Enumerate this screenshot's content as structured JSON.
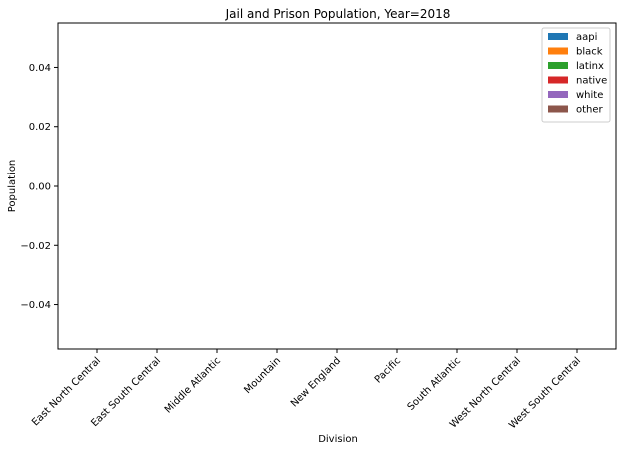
{
  "chart_data": {
    "type": "bar",
    "title": "Jail and Prison Population, Year=2018",
    "xlabel": "Division",
    "ylabel": "Population",
    "categories": [
      "East North Central",
      "East South Central",
      "Middle Atlantic",
      "Mountain",
      "New England",
      "Pacific",
      "South Atlantic",
      "West North Central",
      "West South Central"
    ],
    "series": [
      {
        "name": "aapi",
        "color": "#1f77b4",
        "values": [
          0,
          0,
          0,
          0,
          0,
          0,
          0,
          0,
          0
        ]
      },
      {
        "name": "black",
        "color": "#ff7f0e",
        "values": [
          0,
          0,
          0,
          0,
          0,
          0,
          0,
          0,
          0
        ]
      },
      {
        "name": "latinx",
        "color": "#2ca02c",
        "values": [
          0,
          0,
          0,
          0,
          0,
          0,
          0,
          0,
          0
        ]
      },
      {
        "name": "native",
        "color": "#d62728",
        "values": [
          0,
          0,
          0,
          0,
          0,
          0,
          0,
          0,
          0
        ]
      },
      {
        "name": "white",
        "color": "#9467bd",
        "values": [
          0,
          0,
          0,
          0,
          0,
          0,
          0,
          0,
          0
        ]
      },
      {
        "name": "other",
        "color": "#8c564b",
        "values": [
          0,
          0,
          0,
          0,
          0,
          0,
          0,
          0,
          0
        ]
      }
    ],
    "ylim": [
      -0.055,
      0.055
    ],
    "yticks": [
      "0.04",
      "0.02",
      "0.00",
      "−0.02",
      "−0.04"
    ],
    "ytick_values": [
      0.04,
      0.02,
      0.0,
      -0.02,
      -0.04
    ],
    "grid": false,
    "legend_position": "top-right"
  }
}
